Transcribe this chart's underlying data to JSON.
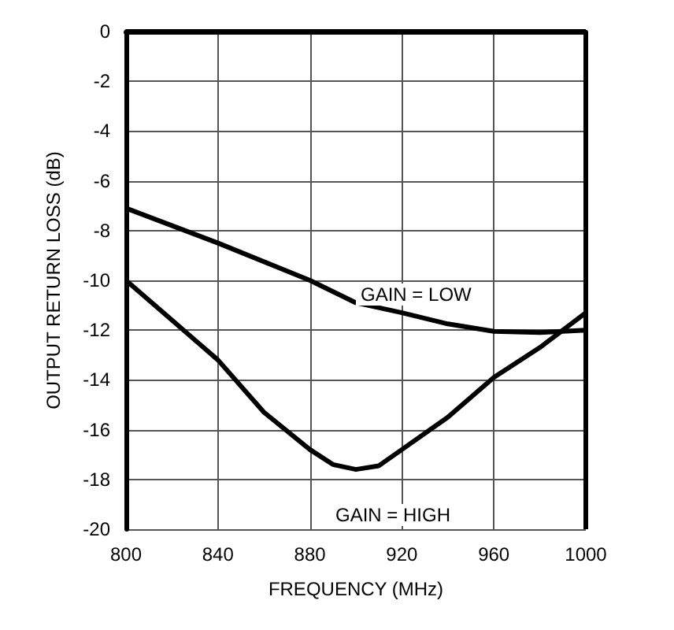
{
  "chart_data": {
    "type": "line",
    "xlabel": "FREQUENCY (MHz)",
    "ylabel": "OUTPUT RETURN LOSS (dB)",
    "xlim": [
      800,
      1000
    ],
    "xticks": [
      800,
      840,
      880,
      920,
      960,
      1000
    ],
    "ylim": [
      -20,
      0
    ],
    "yticks": [
      -20,
      -18,
      -16,
      -14,
      -12,
      -10,
      -8,
      -6,
      -4,
      -2,
      0
    ],
    "grid": true,
    "marker": "none",
    "line_style": "solid",
    "series": [
      {
        "color": "#000000",
        "x": [
          800,
          840,
          880,
          900,
          920,
          940,
          960,
          980,
          1000
        ],
        "values": [
          -7.1,
          -8.5,
          -10.0,
          -10.9,
          -11.3,
          -11.75,
          -12.05,
          -12.1,
          -12.0
        ]
      },
      {
        "color": "#000000",
        "x": [
          800,
          820,
          840,
          860,
          880,
          890,
          900,
          910,
          920,
          940,
          960,
          980,
          1000
        ],
        "values": [
          -10.0,
          -11.6,
          -13.2,
          -15.3,
          -16.8,
          -17.4,
          -17.6,
          -17.45,
          -16.8,
          -15.5,
          -13.9,
          -12.7,
          -11.3
        ]
      }
    ],
    "annotations": [
      "GAIN = LOW",
      "GAIN = HIGH"
    ]
  }
}
